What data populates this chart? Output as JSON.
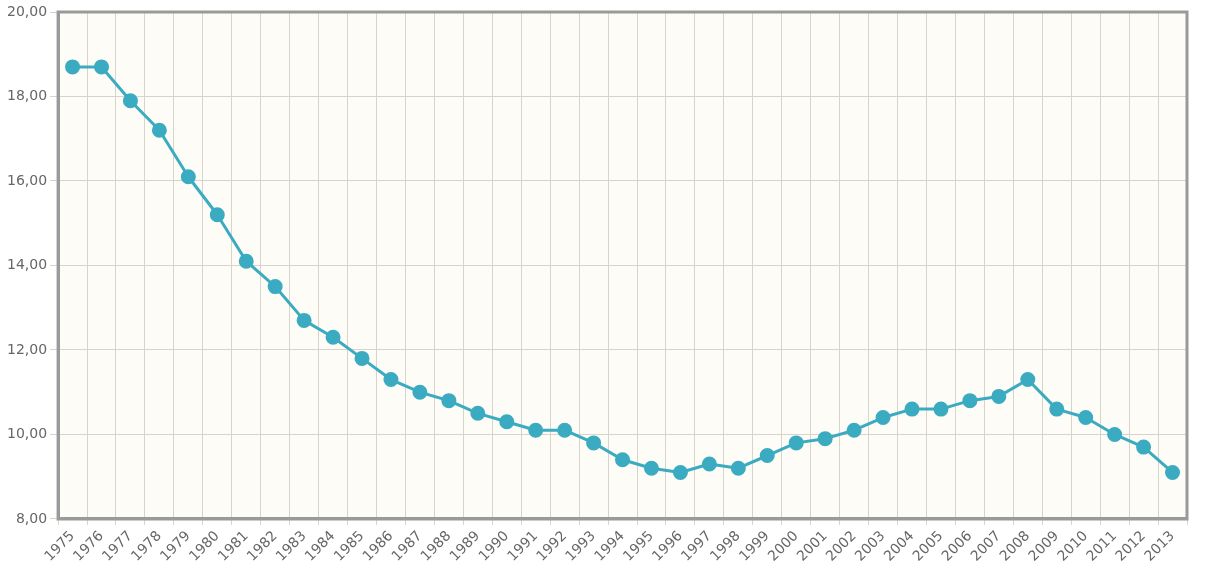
{
  "chart_data": {
    "type": "line",
    "categories": [
      "1975",
      "1976",
      "1977",
      "1978",
      "1979",
      "1980",
      "1981",
      "1982",
      "1983",
      "1984",
      "1985",
      "1986",
      "1987",
      "1988",
      "1989",
      "1990",
      "1991",
      "1992",
      "1993",
      "1994",
      "1995",
      "1996",
      "1997",
      "1998",
      "1999",
      "2000",
      "2001",
      "2002",
      "2003",
      "2004",
      "2005",
      "2006",
      "2007",
      "2008",
      "2009",
      "2010",
      "2011",
      "2012",
      "2013"
    ],
    "series": [
      {
        "color": "#3aabc0",
        "values": [
          18.7,
          18.7,
          17.9,
          17.2,
          16.1,
          15.2,
          14.1,
          13.5,
          12.7,
          12.3,
          11.8,
          11.3,
          11.0,
          10.8,
          10.5,
          10.3,
          10.1,
          10.1,
          9.8,
          9.4,
          9.2,
          9.1,
          9.3,
          9.2,
          9.5,
          9.8,
          9.9,
          10.1,
          10.4,
          10.6,
          10.6,
          10.8,
          10.9,
          11.3,
          10.6,
          10.4,
          10.0,
          9.7,
          9.1
        ]
      }
    ],
    "ylim": [
      8,
      20
    ],
    "yticks": [
      {
        "value": 8,
        "label": "8,00"
      },
      {
        "value": 10,
        "label": "10,00"
      },
      {
        "value": 12,
        "label": "12,00"
      },
      {
        "value": 14,
        "label": "14,00"
      },
      {
        "value": 16,
        "label": "16,00"
      },
      {
        "value": 18,
        "label": "18,00"
      },
      {
        "value": 20,
        "label": "20,00"
      }
    ],
    "grid": true,
    "legend": false,
    "marker": "circle",
    "line_style": "solid"
  }
}
